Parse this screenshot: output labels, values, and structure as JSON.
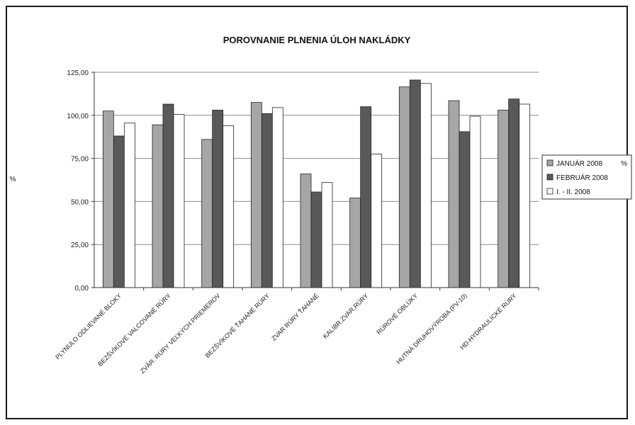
{
  "chart_data": {
    "type": "bar",
    "title": "POROVNANIE PLNENIA ÚLOH NAKLÁDKY",
    "ylabel": "%",
    "legend_unit": "%",
    "legend_position": "right",
    "grid": true,
    "ylim": [
      0,
      125
    ],
    "yticks": [
      "0,00",
      "25,00",
      "50,00",
      "75,00",
      "100,00",
      "125,00"
    ],
    "categories": [
      "PLYNULO ODLIEVANÉ BLOKY",
      "BEZŠVÍKOVÉ VALCOVANÉ RÚRY",
      "ZVÁR. RÚRY VEĽKÝCH PRIEMEROV",
      "BEZŠVÍKOVÉ ŤAHANÉ RÚRY",
      "ZVAR RÚRY ŤAHANÉ",
      "KALIBR.ZVAR.RÚRY",
      "RÚROVÉ OBLÚKY",
      "HUTNÁ DRUHOVÝROBA (PV-10)",
      "HD-HYDRAULICKÉ RÚRY"
    ],
    "series": [
      {
        "name": "JANUÁR 2008",
        "color": "#a6a6a6",
        "values": [
          102.5,
          94.5,
          86,
          107.5,
          66,
          52,
          116.5,
          108.5,
          103
        ]
      },
      {
        "name": "FEBRUÁR 2008",
        "color": "#595959",
        "values": [
          88,
          106.5,
          103,
          101,
          55.5,
          105,
          120.5,
          90.5,
          109.5
        ]
      },
      {
        "name": "I. - II. 2008",
        "color": "#ffffff",
        "values": [
          95.5,
          100.5,
          94,
          104.5,
          61,
          77.5,
          118.5,
          99.5,
          106.5
        ]
      }
    ]
  }
}
